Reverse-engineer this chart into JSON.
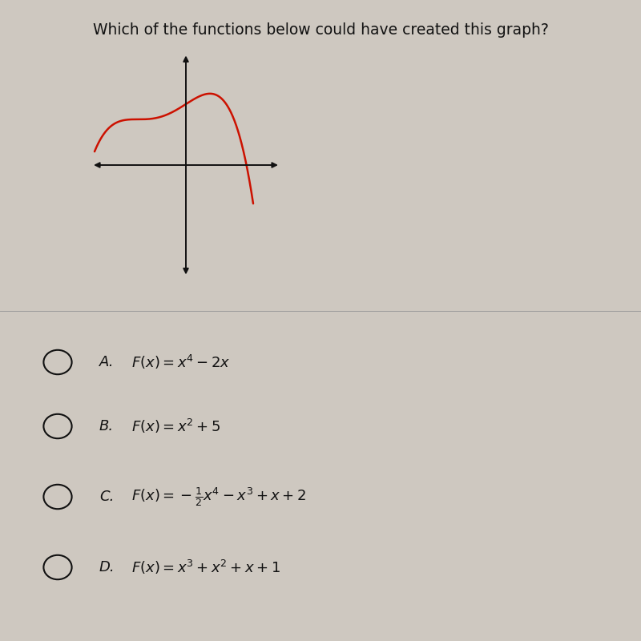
{
  "title": "Which of the functions below could have created this graph?",
  "title_fontsize": 13.5,
  "bg_color": "#cec8c0",
  "options_bg": "#c8c2ba",
  "options": [
    {
      "label": "A.",
      "formula": "$F(x)= x^4-2x$"
    },
    {
      "label": "B.",
      "formula": "$F(x)= x^2+5$"
    },
    {
      "label": "C.",
      "formula": "$F(x)=-\\frac{1}{2}x^4-x^3+x+2$"
    },
    {
      "label": "D.",
      "formula": "$F(x)= x^3+x^2+x+1$"
    }
  ],
  "curve_color": "#cc1100",
  "axis_color": "#111111",
  "text_color": "#111111"
}
